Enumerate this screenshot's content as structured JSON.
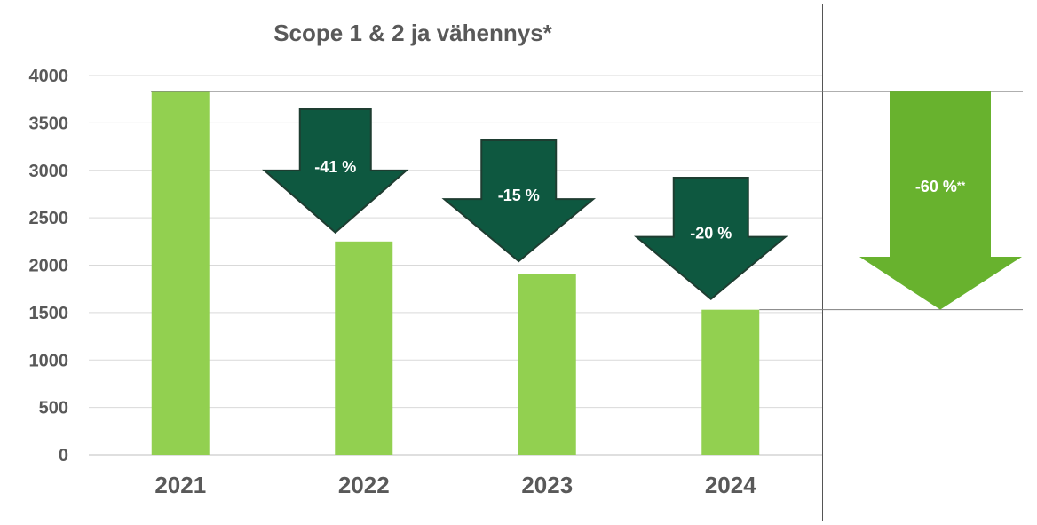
{
  "chart_data": {
    "type": "bar",
    "title": "Scope 1 & 2 ja vähennys*",
    "categories": [
      "2021",
      "2022",
      "2023",
      "2024"
    ],
    "values": [
      3830,
      2250,
      1910,
      1530
    ],
    "ylim": [
      0,
      4000
    ],
    "yticks": [
      "0",
      "500",
      "1000",
      "1500",
      "2000",
      "2500",
      "3000",
      "3500",
      "4000"
    ],
    "grid": true,
    "bar_color": "#92d050",
    "annotations": [
      {
        "label": "-41 %",
        "between": [
          "2021",
          "2022"
        ],
        "color": "#0e5840"
      },
      {
        "label": "-15 %",
        "between": [
          "2022",
          "2023"
        ],
        "color": "#0e5840"
      },
      {
        "label": "-20 %",
        "between": [
          "2023",
          "2024"
        ],
        "color": "#0e5840"
      }
    ],
    "total_reduction": {
      "label": "-60 %",
      "suffix": "**",
      "from": "2021",
      "to": "2024",
      "color": "#68b22e"
    }
  }
}
